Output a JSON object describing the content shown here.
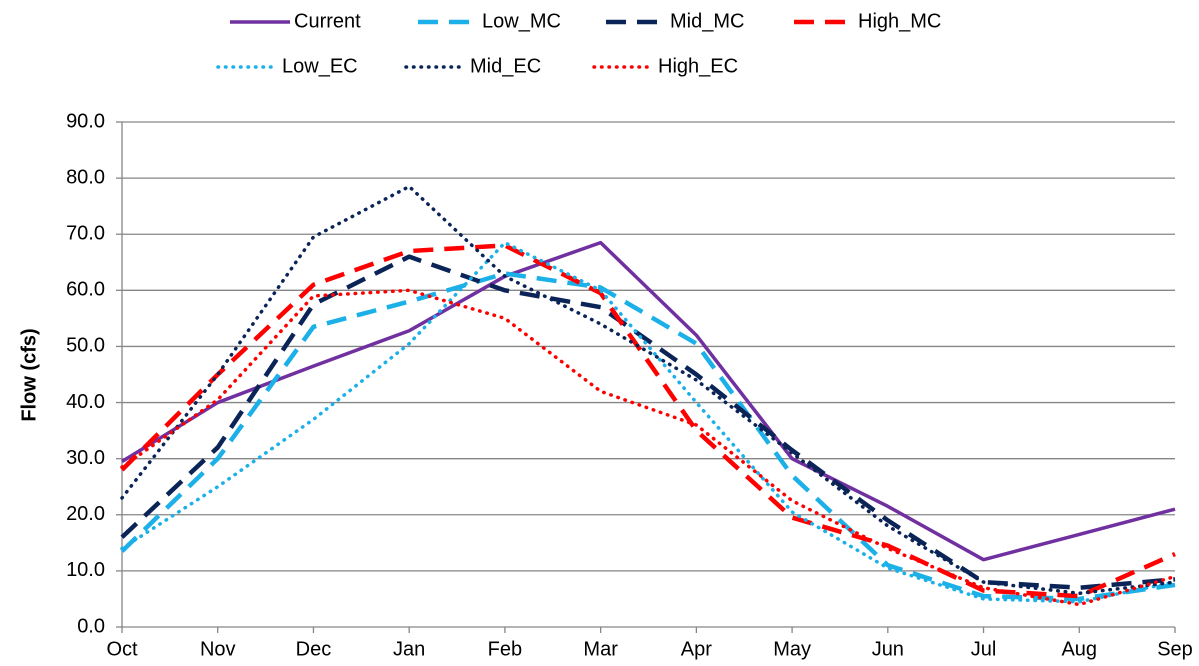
{
  "chart_data": {
    "type": "line",
    "y_label": "Flow (cfs)",
    "categories": [
      "Oct",
      "Nov",
      "Dec",
      "Jan",
      "Feb",
      "Mar",
      "Apr",
      "May",
      "Jun",
      "Jul",
      "Aug",
      "Sep"
    ],
    "series": [
      {
        "name": "Current",
        "color": "#7030a0",
        "dash": "solid",
        "values": [
          29.5,
          40,
          46.5,
          52.8,
          62.5,
          68.5,
          52,
          30,
          21.5,
          12,
          16.5,
          21
        ]
      },
      {
        "name": "Low_MC",
        "color": "#1cb0e8",
        "dash": "dashed",
        "values": [
          13.5,
          30,
          53.5,
          58,
          63,
          60.5,
          50.5,
          27,
          11,
          5.5,
          5,
          7.5
        ]
      },
      {
        "name": "Mid_MC",
        "color": "#0b2457",
        "dash": "dashed",
        "values": [
          16,
          32,
          57.5,
          66,
          60,
          57,
          45,
          31.5,
          19,
          8,
          7,
          8.5
        ]
      },
      {
        "name": "High_MC",
        "color": "#ff0000",
        "dash": "dashed",
        "values": [
          28,
          45,
          61,
          67,
          68,
          59.5,
          35,
          19.5,
          14.5,
          6.5,
          5.5,
          13
        ]
      },
      {
        "name": "Low_EC",
        "color": "#1cb0e8",
        "dash": "dotted",
        "values": [
          14,
          25,
          37,
          50.5,
          68.5,
          60,
          40,
          20.5,
          10.5,
          5,
          4.5,
          8
        ]
      },
      {
        "name": "Mid_EC",
        "color": "#0b2457",
        "dash": "dotted",
        "values": [
          23,
          45,
          69.5,
          78.5,
          62.5,
          54,
          44,
          31,
          18,
          8,
          6,
          8
        ]
      },
      {
        "name": "High_EC",
        "color": "#ff0000",
        "dash": "dotted",
        "values": [
          28.5,
          40.5,
          59,
          60,
          55,
          42,
          36,
          22.5,
          14,
          7,
          4,
          9
        ]
      }
    ],
    "ylim": [
      0,
      90
    ],
    "yticks": [
      {
        "value": 0,
        "label": "0.0"
      },
      {
        "value": 10,
        "label": "10.0"
      },
      {
        "value": 20,
        "label": "20.0"
      },
      {
        "value": 30,
        "label": "30.0"
      },
      {
        "value": 40,
        "label": "40.0"
      },
      {
        "value": 50,
        "label": "50.0"
      },
      {
        "value": 60,
        "label": "60.0"
      },
      {
        "value": 70,
        "label": "70.0"
      },
      {
        "value": 80,
        "label": "80.0"
      },
      {
        "value": 90,
        "label": "90.0"
      }
    ],
    "grid": true,
    "legend": "top"
  }
}
